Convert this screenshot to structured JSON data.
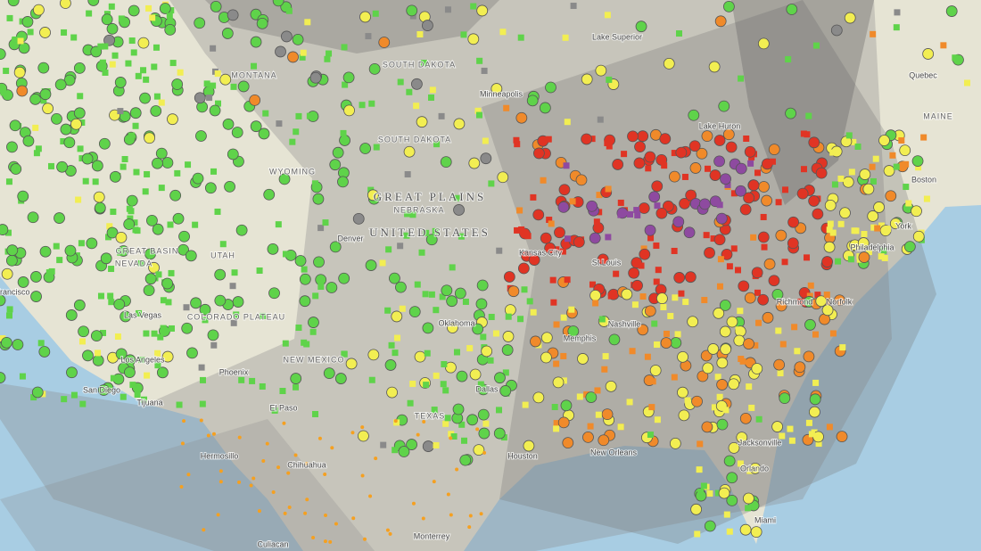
{
  "map": {
    "labels": [
      "UNITED STATES",
      "GREAT PLAINS",
      "NEBRASKA",
      "SOUTH DAKOTA",
      "SOUTH DAKOTA",
      "GREAT BASIN",
      "NEVADA",
      "COLORADO PLATEAU",
      "NEW MEXICO",
      "TEXAS",
      "WYOMING",
      "MONTANA",
      "UTAH",
      "MAINE",
      "Lake Superior",
      "Lake Huron",
      "Quebec",
      "Minneapolis",
      "Denver",
      "Kansas City",
      "St Louis",
      "Oklahoma",
      "Dallas",
      "Memphis",
      "Nashville",
      "Houston",
      "New Orleans",
      "Jacksonville",
      "Orlando",
      "Miami",
      "Norfolk",
      "Richmond",
      "Philadelphia",
      "York",
      "Boston",
      "San Diego",
      "Tijuana",
      "Los Angeles",
      "Las Vegas",
      "Phoenix",
      "El Paso",
      "Chihuahua",
      "Hermosillo",
      "Monterrey",
      "Culiacan",
      "Francisco"
    ]
  }
}
